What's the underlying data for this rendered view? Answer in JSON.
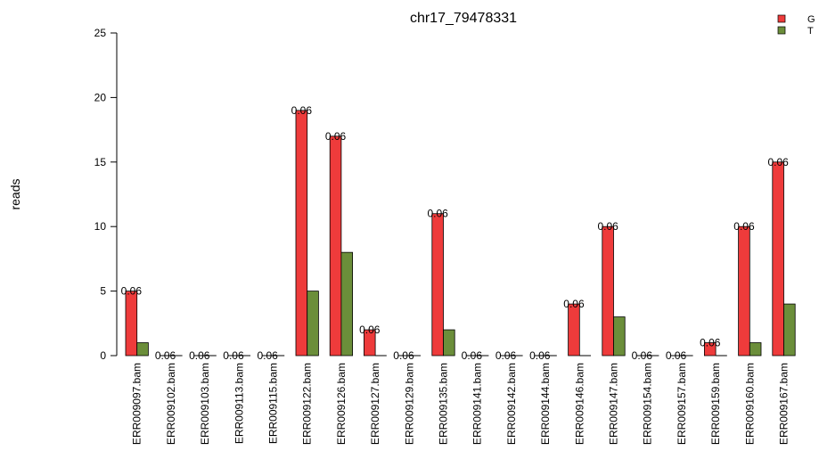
{
  "chart_data": {
    "type": "bar",
    "title": "chr17_79478331",
    "xlabel": "",
    "ylabel": "reads",
    "ylim": [
      0,
      25
    ],
    "yticks": [
      "0",
      "5",
      "10",
      "15",
      "20",
      "25"
    ],
    "categories": [
      "ERR009097.bam",
      "ERR009102.bam",
      "ERR009103.bam",
      "ERR009113.bam",
      "ERR009115.bam",
      "ERR009122.bam",
      "ERR009126.bam",
      "ERR009127.bam",
      "ERR009129.bam",
      "ERR009135.bam",
      "ERR009141.bam",
      "ERR009142.bam",
      "ERR009144.bam",
      "ERR009146.bam",
      "ERR009147.bam",
      "ERR009154.bam",
      "ERR009157.bam",
      "ERR009159.bam",
      "ERR009160.bam",
      "ERR009167.bam"
    ],
    "series": [
      {
        "name": "G",
        "color": "#ee3b3b",
        "values": [
          5,
          0,
          0,
          0,
          0,
          19,
          17,
          2,
          0,
          11,
          0,
          0,
          0,
          4,
          10,
          0,
          0,
          1,
          10,
          15
        ]
      },
      {
        "name": "T",
        "color": "#6b8e3a",
        "values": [
          1,
          0,
          0,
          0,
          0,
          5,
          8,
          0,
          0,
          2,
          0,
          0,
          0,
          0,
          3,
          0,
          0,
          0,
          1,
          4
        ]
      }
    ],
    "bar_labels": [
      "0.06",
      "0.06",
      "0.06",
      "0.06",
      "0.06",
      "0.06",
      "0.06",
      "0.06",
      "0.06",
      "0.06",
      "0.06",
      "0.06",
      "0.06",
      "0.06",
      "0.06",
      "0.06",
      "0.06",
      "0.06",
      "0.06",
      "0.06"
    ],
    "legend_position": "top-right",
    "grid": false
  }
}
